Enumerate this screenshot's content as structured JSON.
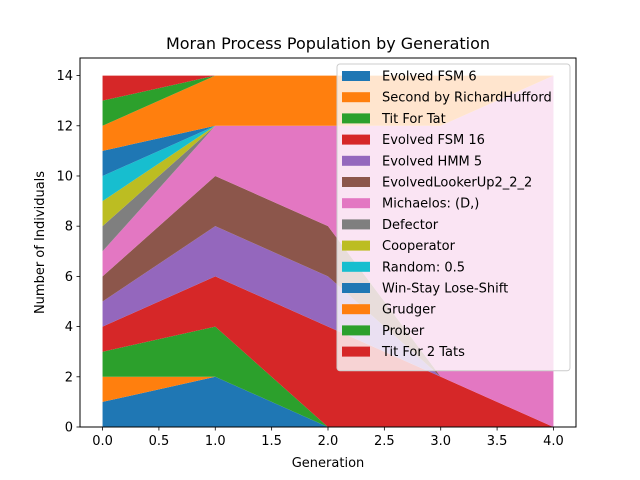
{
  "chart_data": {
    "type": "area",
    "stacked": true,
    "title": "Moran Process Population by Generation",
    "xlabel": "Generation",
    "ylabel": "Number of Individuals",
    "xlim": [
      -0.2,
      4.2
    ],
    "ylim": [
      0,
      14.7
    ],
    "xticks": [
      0.0,
      0.5,
      1.0,
      1.5,
      2.0,
      2.5,
      3.0,
      3.5,
      4.0
    ],
    "xtick_labels": [
      "0.0",
      "0.5",
      "1.0",
      "1.5",
      "2.0",
      "2.5",
      "3.0",
      "3.5",
      "4.0"
    ],
    "yticks": [
      0,
      2,
      4,
      6,
      8,
      10,
      12,
      14
    ],
    "ytick_labels": [
      "0",
      "2",
      "4",
      "6",
      "8",
      "10",
      "12",
      "14"
    ],
    "grid": false,
    "legend_position": "upper-right",
    "x": [
      0,
      1,
      2,
      3,
      4
    ],
    "series": [
      {
        "name": "Evolved FSM 6",
        "color": "#1f77b4",
        "values": [
          1,
          2,
          0,
          0,
          0
        ]
      },
      {
        "name": "Second by RichardHufford",
        "color": "#ff7f0e",
        "values": [
          1,
          0,
          0,
          0,
          0
        ]
      },
      {
        "name": "Tit For Tat",
        "color": "#2ca02c",
        "values": [
          1,
          2,
          0,
          0,
          0
        ]
      },
      {
        "name": "Evolved FSM 16",
        "color": "#d62728",
        "values": [
          1,
          2,
          4,
          2,
          0
        ]
      },
      {
        "name": "Evolved HMM 5",
        "color": "#9467bd",
        "values": [
          1,
          2,
          2,
          0,
          0
        ]
      },
      {
        "name": "EvolvedLookerUp2_2_2",
        "color": "#8c564b",
        "values": [
          1,
          2,
          2,
          0,
          0
        ]
      },
      {
        "name": "Michaelos: (D,)",
        "color": "#e377c2",
        "values": [
          1,
          2,
          4,
          10,
          14
        ]
      },
      {
        "name": "Defector",
        "color": "#7f7f7f",
        "values": [
          1,
          0,
          0,
          0,
          0
        ]
      },
      {
        "name": "Cooperator",
        "color": "#bcbd22",
        "values": [
          1,
          0,
          0,
          0,
          0
        ]
      },
      {
        "name": "Random: 0.5",
        "color": "#17becf",
        "values": [
          1,
          0,
          0,
          0,
          0
        ]
      },
      {
        "name": "Win-Stay Lose-Shift",
        "color": "#1f77b4",
        "values": [
          1,
          0,
          0,
          0,
          0
        ]
      },
      {
        "name": "Grudger",
        "color": "#ff7f0e",
        "values": [
          1,
          2,
          2,
          2,
          0
        ]
      },
      {
        "name": "Prober",
        "color": "#2ca02c",
        "values": [
          1,
          0,
          0,
          0,
          0
        ]
      },
      {
        "name": "Tit For 2 Tats",
        "color": "#d62728",
        "values": [
          1,
          0,
          0,
          0,
          0
        ]
      }
    ]
  }
}
